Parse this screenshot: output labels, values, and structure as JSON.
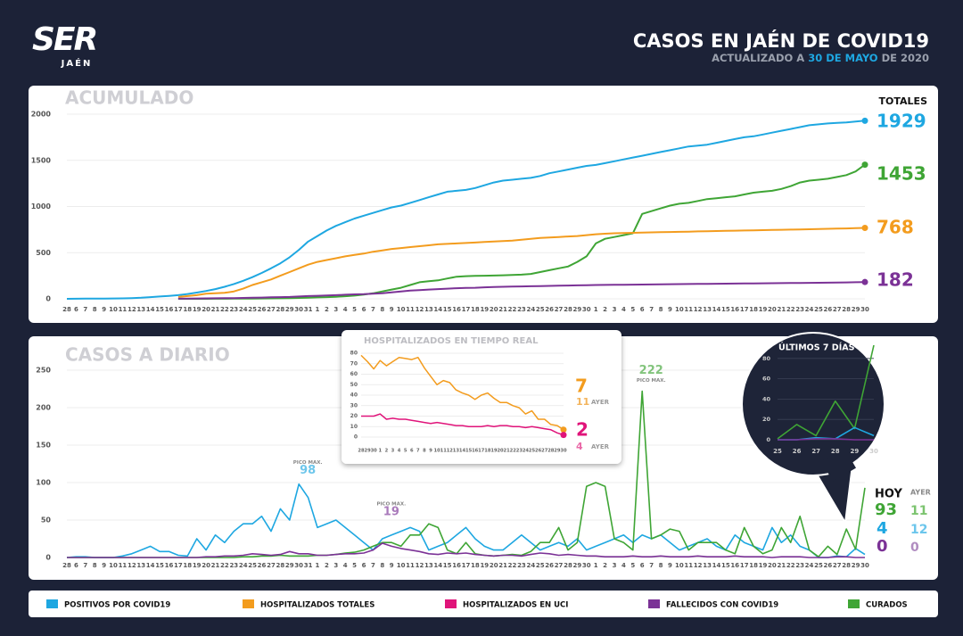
{
  "header": {
    "logo": "SER",
    "logo_sub": "JAÉN",
    "title": "CASOS EN JAÉN DE COVID19",
    "subtitle": [
      "ACTUALIZADO A ",
      "30 DE MAYO",
      " DE 2020"
    ]
  },
  "legend": [
    {
      "name": "POSITIVOS POR COVID19",
      "color": "#1ea7e1"
    },
    {
      "name": "HOSPITALIZADOS TOTALES",
      "color": "#f39c1e"
    },
    {
      "name": "HOSPITALIZADOS EN UCI",
      "color": "#e0147a"
    },
    {
      "name": "FALLECIDOS CON COVID19",
      "color": "#7b3296"
    },
    {
      "name": "CURADOS",
      "color": "#3fa535"
    }
  ],
  "chart_data": [
    {
      "type": "line",
      "title": "ACUMULADO",
      "totals_label": "TOTALES",
      "grid": true,
      "categories": [
        "28",
        "6",
        "7",
        "8",
        "9",
        "10",
        "11",
        "12",
        "13",
        "14",
        "15",
        "16",
        "17",
        "18",
        "19",
        "20",
        "21",
        "22",
        "23",
        "24",
        "25",
        "26",
        "27",
        "28",
        "29",
        "30",
        "31",
        "1",
        "2",
        "3",
        "4",
        "5",
        "6",
        "7",
        "8",
        "9",
        "10",
        "11",
        "12",
        "13",
        "14",
        "15",
        "16",
        "17",
        "18",
        "19",
        "20",
        "21",
        "22",
        "23",
        "24",
        "25",
        "26",
        "27",
        "28",
        "29",
        "30",
        "1",
        "2",
        "3",
        "4",
        "5",
        "6",
        "7",
        "8",
        "9",
        "10",
        "11",
        "12",
        "13",
        "14",
        "15",
        "16",
        "17",
        "18",
        "19",
        "20",
        "21",
        "22",
        "23",
        "24",
        "25",
        "26",
        "27",
        "28",
        "29",
        "30"
      ],
      "ylim": [
        0,
        2000
      ],
      "yticks": [
        0,
        500,
        1000,
        1500,
        2000
      ],
      "series": [
        {
          "color": "#1ea7e1",
          "values": [
            0,
            1,
            2,
            2,
            3,
            4,
            5,
            8,
            12,
            18,
            25,
            32,
            40,
            52,
            68,
            85,
            105,
            130,
            160,
            195,
            235,
            280,
            330,
            385,
            450,
            530,
            620,
            680,
            740,
            790,
            830,
            870,
            900,
            930,
            960,
            990,
            1010,
            1040,
            1070,
            1100,
            1130,
            1160,
            1170,
            1180,
            1200,
            1230,
            1260,
            1280,
            1290,
            1300,
            1310,
            1330,
            1360,
            1380,
            1400,
            1420,
            1440,
            1450,
            1470,
            1490,
            1510,
            1530,
            1550,
            1570,
            1590,
            1610,
            1630,
            1650,
            1660,
            1670,
            1690,
            1710,
            1730,
            1750,
            1760,
            1780,
            1800,
            1820,
            1840,
            1860,
            1880,
            1890,
            1900,
            1905,
            1910,
            1920,
            1929
          ]
        },
        {
          "color": "#3fa535",
          "values": [
            null,
            null,
            null,
            null,
            null,
            null,
            null,
            null,
            null,
            null,
            null,
            null,
            0,
            0,
            0,
            0,
            1,
            1,
            2,
            2,
            3,
            4,
            5,
            6,
            8,
            10,
            12,
            15,
            18,
            22,
            28,
            35,
            45,
            60,
            80,
            100,
            120,
            150,
            180,
            190,
            200,
            220,
            240,
            245,
            248,
            250,
            252,
            255,
            258,
            262,
            270,
            290,
            310,
            330,
            350,
            400,
            460,
            600,
            650,
            670,
            690,
            710,
            920,
            950,
            980,
            1010,
            1030,
            1040,
            1060,
            1080,
            1090,
            1100,
            1110,
            1130,
            1150,
            1160,
            1170,
            1190,
            1220,
            1260,
            1280,
            1290,
            1300,
            1320,
            1340,
            1380,
            1453
          ]
        },
        {
          "color": "#f39c1e",
          "values": [
            null,
            null,
            null,
            null,
            null,
            null,
            null,
            null,
            null,
            null,
            null,
            null,
            20,
            30,
            40,
            55,
            60,
            65,
            80,
            110,
            150,
            180,
            210,
            250,
            290,
            330,
            370,
            400,
            420,
            440,
            460,
            475,
            490,
            510,
            525,
            540,
            550,
            560,
            570,
            580,
            590,
            595,
            600,
            605,
            610,
            615,
            620,
            625,
            630,
            640,
            650,
            660,
            665,
            670,
            675,
            680,
            690,
            700,
            705,
            710,
            712,
            715,
            718,
            720,
            722,
            724,
            726,
            728,
            730,
            732,
            734,
            736,
            738,
            740,
            742,
            744,
            746,
            748,
            750,
            752,
            754,
            756,
            758,
            760,
            762,
            765,
            768
          ]
        },
        {
          "color": "#7b3296",
          "values": [
            null,
            null,
            null,
            null,
            null,
            null,
            null,
            null,
            null,
            null,
            null,
            null,
            2,
            3,
            4,
            5,
            6,
            7,
            8,
            10,
            12,
            14,
            16,
            18,
            20,
            25,
            30,
            33,
            36,
            40,
            44,
            48,
            50,
            55,
            60,
            70,
            80,
            90,
            95,
            100,
            105,
            110,
            115,
            118,
            120,
            125,
            128,
            130,
            132,
            134,
            136,
            138,
            140,
            142,
            144,
            146,
            148,
            150,
            151,
            152,
            153,
            154,
            155,
            156,
            157,
            158,
            159,
            160,
            161,
            162,
            163,
            164,
            165,
            166,
            167,
            168,
            169,
            170,
            171,
            172,
            173,
            174,
            175,
            176,
            178,
            180,
            182
          ]
        }
      ]
    },
    {
      "type": "line",
      "title": "CASOS A DIARIO",
      "peak_label": "PICO MAX.",
      "today_label": "HOY",
      "yesterday_label": "AYER",
      "grid": true,
      "categories": [
        "28",
        "6",
        "7",
        "8",
        "9",
        "10",
        "11",
        "12",
        "13",
        "14",
        "15",
        "16",
        "17",
        "18",
        "19",
        "20",
        "21",
        "22",
        "23",
        "24",
        "25",
        "26",
        "27",
        "28",
        "29",
        "30",
        "31",
        "1",
        "2",
        "3",
        "4",
        "5",
        "6",
        "7",
        "8",
        "9",
        "10",
        "11",
        "12",
        "13",
        "14",
        "15",
        "16",
        "17",
        "18",
        "19",
        "20",
        "21",
        "22",
        "23",
        "24",
        "25",
        "26",
        "27",
        "28",
        "29",
        "30",
        "1",
        "2",
        "3",
        "4",
        "5",
        "6",
        "7",
        "8",
        "9",
        "10",
        "11",
        "12",
        "13",
        "14",
        "15",
        "16",
        "17",
        "18",
        "19",
        "20",
        "21",
        "22",
        "23",
        "24",
        "25",
        "26",
        "27",
        "28",
        "29",
        "30"
      ],
      "ylim": [
        0,
        250
      ],
      "yticks": [
        0,
        50,
        100,
        150,
        200,
        250
      ],
      "series": [
        {
          "color": "#1ea7e1",
          "values": [
            0,
            1,
            1,
            0,
            0,
            0,
            2,
            5,
            10,
            15,
            8,
            8,
            3,
            2,
            25,
            10,
            30,
            20,
            35,
            45,
            45,
            55,
            35,
            65,
            50,
            98,
            80,
            40,
            45,
            50,
            40,
            30,
            20,
            10,
            25,
            30,
            35,
            40,
            35,
            10,
            15,
            20,
            30,
            40,
            25,
            15,
            10,
            10,
            20,
            30,
            20,
            10,
            15,
            20,
            15,
            25,
            10,
            15,
            20,
            25,
            30,
            20,
            30,
            25,
            30,
            20,
            10,
            15,
            20,
            25,
            15,
            10,
            30,
            20,
            15,
            10,
            40,
            20,
            30,
            15,
            10,
            0,
            0,
            2,
            1,
            12,
            4
          ]
        },
        {
          "color": "#3fa535",
          "values": [
            0,
            0,
            0,
            0,
            0,
            0,
            0,
            0,
            0,
            0,
            0,
            0,
            0,
            0,
            0,
            0,
            0,
            0,
            0,
            1,
            1,
            2,
            2,
            3,
            2,
            2,
            2,
            3,
            3,
            4,
            6,
            7,
            10,
            15,
            20,
            20,
            15,
            30,
            30,
            45,
            40,
            10,
            5,
            20,
            5,
            3,
            2,
            3,
            4,
            3,
            8,
            20,
            20,
            40,
            10,
            20,
            95,
            100,
            95,
            25,
            20,
            10,
            222,
            25,
            30,
            38,
            35,
            10,
            20,
            20,
            20,
            10,
            5,
            40,
            15,
            5,
            10,
            40,
            20,
            55,
            10,
            1,
            15,
            4,
            38,
            11,
            93
          ]
        },
        {
          "color": "#7b3296",
          "values": [
            0,
            0,
            0,
            0,
            0,
            0,
            0,
            0,
            0,
            0,
            0,
            0,
            0,
            0,
            0,
            1,
            1,
            2,
            2,
            3,
            5,
            4,
            3,
            4,
            8,
            5,
            5,
            3,
            3,
            4,
            5,
            5,
            6,
            10,
            19,
            15,
            12,
            10,
            8,
            5,
            4,
            6,
            5,
            6,
            4,
            3,
            2,
            3,
            3,
            2,
            4,
            6,
            5,
            3,
            4,
            3,
            2,
            2,
            1,
            1,
            1,
            2,
            1,
            1,
            2,
            1,
            1,
            1,
            2,
            1,
            1,
            1,
            2,
            1,
            1,
            1,
            0,
            1,
            1,
            1,
            0,
            0,
            0,
            1,
            1,
            0,
            0
          ]
        }
      ]
    },
    {
      "type": "line",
      "title": "HOSPITALIZADOS EN TIEMPO REAL",
      "yesterday_label": "AYER",
      "grid": true,
      "categories": [
        "28",
        "29",
        "30",
        "1",
        "2",
        "3",
        "4",
        "5",
        "6",
        "7",
        "8",
        "9",
        "10",
        "11",
        "12",
        "13",
        "14",
        "15",
        "16",
        "17",
        "18",
        "19",
        "20",
        "21",
        "22",
        "23",
        "24",
        "25",
        "26",
        "27",
        "28",
        "29",
        "30"
      ],
      "ylim": [
        0,
        80
      ],
      "yticks": [
        0,
        10,
        20,
        30,
        40,
        50,
        60,
        70,
        80
      ],
      "series": [
        {
          "color": "#f39c1e",
          "values": [
            78,
            72,
            65,
            73,
            68,
            72,
            76,
            75,
            74,
            76,
            66,
            58,
            50,
            54,
            52,
            45,
            42,
            40,
            36,
            40,
            42,
            37,
            33,
            33,
            30,
            28,
            22,
            25,
            17,
            17,
            12,
            11,
            7
          ]
        },
        {
          "color": "#e0147a",
          "values": [
            20,
            20,
            20,
            22,
            17,
            18,
            17,
            17,
            16,
            15,
            14,
            13,
            14,
            13,
            12,
            11,
            11,
            10,
            10,
            10,
            11,
            10,
            11,
            11,
            10,
            10,
            9,
            10,
            9,
            8,
            7,
            4,
            2
          ]
        }
      ]
    },
    {
      "type": "line",
      "title": "ÚLTIMOS 7 DÍAS",
      "grid": true,
      "categories": [
        "25",
        "26",
        "27",
        "28",
        "29",
        "30"
      ],
      "ylim": [
        0,
        100
      ],
      "yticks": [
        0,
        20,
        40,
        60,
        80
      ],
      "series": [
        {
          "color": "#3fa535",
          "values": [
            1,
            15,
            4,
            38,
            11,
            93
          ]
        },
        {
          "color": "#1ea7e1",
          "values": [
            0,
            0,
            2,
            1,
            12,
            4
          ]
        },
        {
          "color": "#7b3296",
          "values": [
            0,
            0,
            1,
            1,
            0,
            0
          ]
        }
      ]
    }
  ]
}
